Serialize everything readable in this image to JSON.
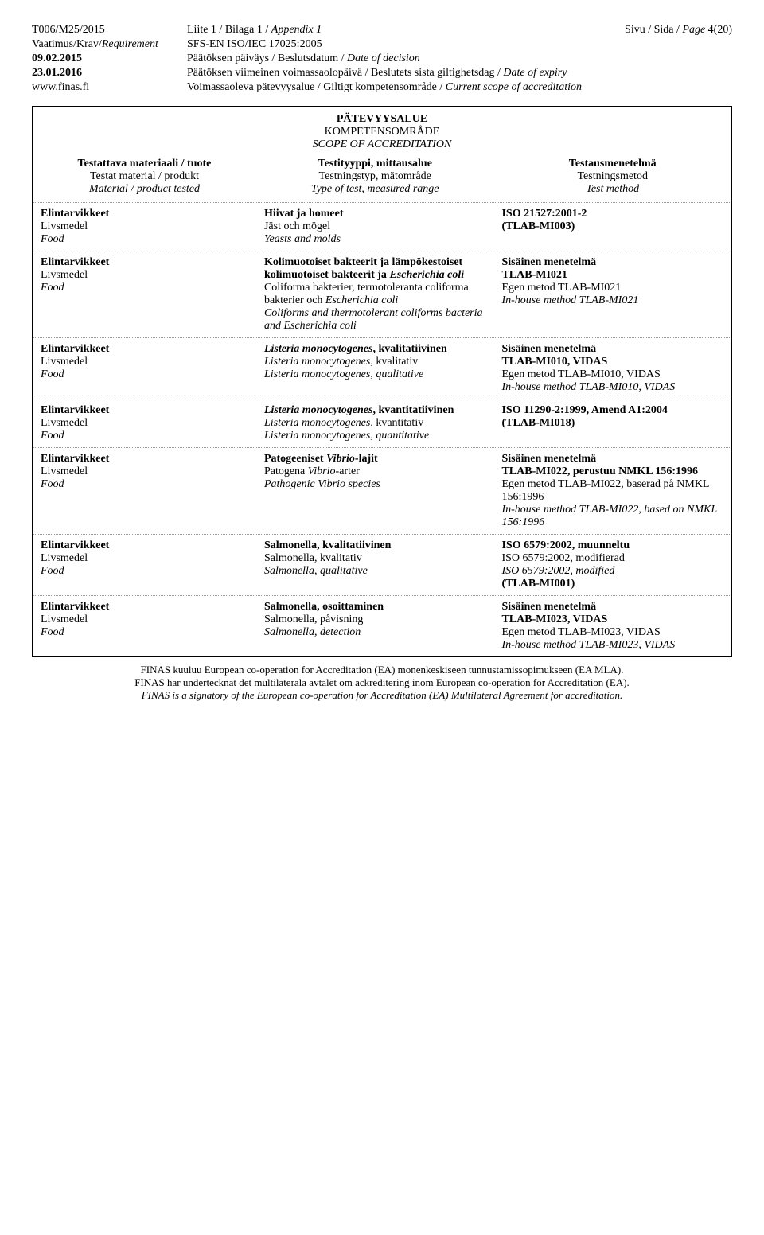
{
  "header": {
    "doc_id": "T006/M25/2015",
    "appendix": "Liite 1 / Bilaga 1 / ",
    "appendix_it": "Appendix 1",
    "page": "Sivu / Sida / ",
    "page_it": "Page",
    "page_num": " 4(20)",
    "req_label": "Vaatimus/Krav/",
    "req_label_it": "Requirement",
    "req_val": "SFS-EN ISO/IEC 17025:2005",
    "date1_label": "09.02.2015",
    "date1_text": "Päätöksen päiväys / Beslutsdatum / ",
    "date1_it": "Date of decision",
    "date2_label": "23.01.2016",
    "date2_text": "Päätöksen viimeinen voimassaolopäivä / Beslutets sista giltighetsdag / ",
    "date2_it": "Date of expiry",
    "site": "www.finas.fi",
    "scope_text": "Voimassaoleva pätevyysalue / Giltigt kompetensområde / ",
    "scope_it": "Current scope of accreditation"
  },
  "title": {
    "l1": "PÄTEVYYSALUE",
    "l2": "KOMPETENSOMRÅDE",
    "l3": "SCOPE OF ACCREDITATION"
  },
  "thead": {
    "c1a": "Testattava materiaali / tuote",
    "c1b": "Testat material / produkt",
    "c1c": "Material / product tested",
    "c2a": "Testityyppi, mittausalue",
    "c2b": "Testningstyp, mätområde",
    "c2c": "Type of test, measured range",
    "c3a": "Testausmenetelmä",
    "c3b": "Testningsmetod",
    "c3c": "Test method"
  },
  "mat": {
    "a": "Elintarvikkeet",
    "b": "Livsmedel",
    "c": "Food"
  },
  "rows": [
    {
      "c2a": "Hiivat ja homeet",
      "c2b": "Jäst och mögel",
      "c2c": "Yeasts and molds",
      "c3a": "ISO 21527:2001-2",
      "c3b": "(TLAB-MI003)",
      "c3c": "",
      "c3d": "",
      "c3e": "",
      "c3f": ""
    },
    {
      "c2a": "Kolimuotoiset bakteerit ja lämpökestoiset kolimuotoiset bakteerit ja ",
      "c2a_it": "Escherichia coli",
      "c2b": "Coliforma bakterier, termotoleranta coliforma bakterier och ",
      "c2b_it": "Escherichia coli",
      "c2c": "Coliforms and thermotolerant coliforms bacteria and Escherichia coli",
      "c3a": "Sisäinen menetelmä",
      "c3b": "TLAB-MI021",
      "c3c": "Egen metod TLAB-MI021",
      "c3d": "In-house method TLAB-MI021",
      "c3e": "",
      "c3f": ""
    },
    {
      "c2a_it1": "Listeria monocytogenes",
      "c2a": ", kvalitatiivinen",
      "c2b_it1": "Listeria monocytogenes",
      "c2b": ", kvalitativ",
      "c2c": "Listeria monocytogenes, qualitative",
      "c3a": "Sisäinen menetelmä",
      "c3b": "TLAB-MI010, VIDAS",
      "c3c": "Egen metod TLAB-MI010, VIDAS",
      "c3d": "In-house method TLAB-MI010, VIDAS",
      "c3e": "",
      "c3f": ""
    },
    {
      "c2a_it1": "Listeria monocytogenes",
      "c2a": ", kvantitatiivinen",
      "c2b_it1": "Listeria monocytogenes",
      "c2b": ", kvantitativ",
      "c2c": "Listeria monocytogenes, quantitative",
      "c3a": "ISO 11290-2:1999, Amend A1:2004",
      "c3b": "(TLAB-MI018)",
      "c3c": "",
      "c3d": "",
      "c3e": "",
      "c3f": ""
    },
    {
      "c2a": "Patogeeniset ",
      "c2a_it": "Vibrio",
      "c2a2": "-lajit",
      "c2b": "Patogena ",
      "c2b_it": "Vibrio",
      "c2b2": "-arter",
      "c2c": "Pathogenic Vibrio species",
      "c3a": "Sisäinen menetelmä",
      "c3b": "TLAB-MI022, perustuu NMKL 156:1996",
      "c3c": "Egen metod TLAB-MI022, baserad på NMKL 156:1996",
      "c3d": "In-house method TLAB-MI022, based on NMKL 156:1996",
      "c3e": "",
      "c3f": ""
    },
    {
      "c2a": "Salmonella, kvalitatiivinen",
      "c2b": "Salmonella, kvalitativ",
      "c2c": "Salmonella, qualitative",
      "c3a": "ISO 6579:2002, muunneltu",
      "c3b_plain": "ISO 6579:2002, modifierad",
      "c3c_it": "ISO 6579:2002, modified",
      "c3d_bold": "(TLAB-MI001)",
      "c3e": "",
      "c3f": ""
    },
    {
      "c2a": "Salmonella, osoittaminen",
      "c2b": "Salmonella, påvisning",
      "c2c": "Salmonella, detection",
      "c3a": "Sisäinen menetelmä",
      "c3b": "TLAB-MI023, VIDAS",
      "c3c": "Egen metod TLAB-MI023, VIDAS",
      "c3d": "In-house method TLAB-MI023, VIDAS",
      "c3e": "",
      "c3f": ""
    }
  ],
  "footer": {
    "l1": "FINAS kuuluu European co-operation for Accreditation (EA) monenkeskiseen tunnustamissopimukseen (EA MLA).",
    "l2": "FINAS har undertecknat det multilaterala avtalet om ackreditering inom European co-operation for Accreditation (EA).",
    "l3": "FINAS is a signatory of the European co-operation for Accreditation (EA) Multilateral Agreement for accreditation."
  }
}
